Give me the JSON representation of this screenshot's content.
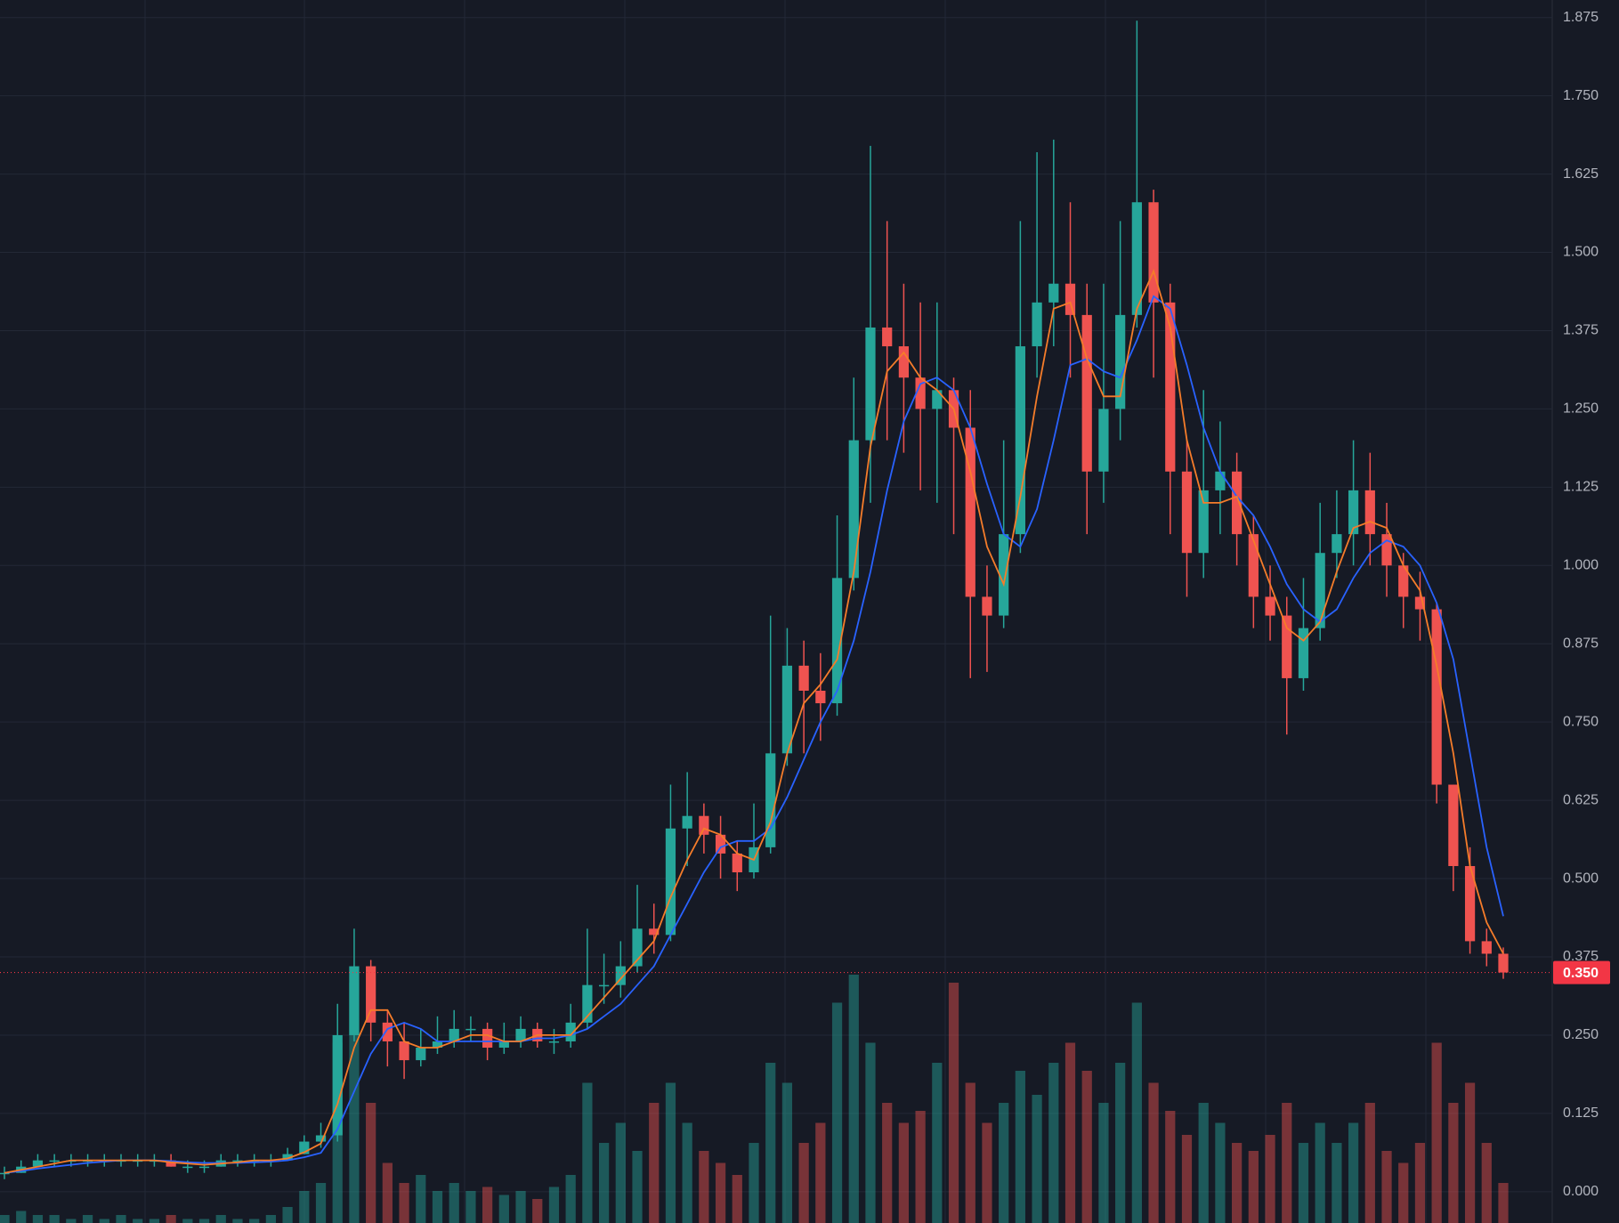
{
  "chart_data": {
    "type": "candlestick",
    "ylim": [
      -0.05,
      1.903
    ],
    "yticks": [
      {
        "value": 0,
        "label": "0.000"
      },
      {
        "value": 0.125,
        "label": "0.125"
      },
      {
        "value": 0.25,
        "label": "0.250"
      },
      {
        "value": 0.375,
        "label": "0.375"
      },
      {
        "value": 0.5,
        "label": "0.500"
      },
      {
        "value": 0.625,
        "label": "0.625"
      },
      {
        "value": 0.75,
        "label": "0.750"
      },
      {
        "value": 0.875,
        "label": "0.875"
      },
      {
        "value": 1,
        "label": "1.000"
      },
      {
        "value": 1.125,
        "label": "1.125"
      },
      {
        "value": 1.25,
        "label": "1.250"
      },
      {
        "value": 1.375,
        "label": "1.375"
      },
      {
        "value": 1.5,
        "label": "1.500"
      },
      {
        "value": 1.625,
        "label": "1.625"
      },
      {
        "value": 1.75,
        "label": "1.750"
      },
      {
        "value": 1.875,
        "label": "1.875"
      }
    ],
    "grid": true,
    "up_color": "#26a69a",
    "down_color": "#ef5350",
    "open": [
      0.03,
      0.03,
      0.04,
      0.05,
      0.05,
      0.05,
      0.05,
      0.05,
      0.05,
      0.05,
      0.05,
      0.04,
      0.04,
      0.04,
      0.05,
      0.05,
      0.05,
      0.05,
      0.06,
      0.08,
      0.09,
      0.25,
      0.36,
      0.27,
      0.24,
      0.21,
      0.23,
      0.24,
      0.26,
      0.26,
      0.23,
      0.24,
      0.26,
      0.24,
      0.24,
      0.27,
      0.33,
      0.33,
      0.36,
      0.42,
      0.41,
      0.58,
      0.6,
      0.57,
      0.54,
      0.51,
      0.55,
      0.7,
      0.84,
      0.8,
      0.78,
      0.98,
      1.2,
      1.38,
      1.35,
      1.3,
      1.25,
      1.28,
      1.22,
      0.95,
      0.92,
      1.05,
      1.35,
      1.42,
      1.45,
      1.4,
      1.15,
      1.25,
      1.4,
      1.58,
      1.42,
      1.15,
      1.02,
      1.12,
      1.15,
      1.05,
      0.95,
      0.92,
      0.82,
      0.9,
      1.02,
      1.05,
      1.12,
      1.05,
      1.0,
      0.95,
      0.93,
      0.65,
      0.52,
      0.4,
      0.38
    ],
    "high": [
      0.04,
      0.05,
      0.06,
      0.06,
      0.06,
      0.06,
      0.06,
      0.06,
      0.06,
      0.06,
      0.06,
      0.05,
      0.05,
      0.06,
      0.06,
      0.06,
      0.06,
      0.07,
      0.09,
      0.11,
      0.3,
      0.42,
      0.37,
      0.29,
      0.27,
      0.26,
      0.28,
      0.29,
      0.28,
      0.27,
      0.27,
      0.28,
      0.27,
      0.26,
      0.3,
      0.42,
      0.38,
      0.4,
      0.49,
      0.46,
      0.65,
      0.67,
      0.62,
      0.6,
      0.56,
      0.62,
      0.92,
      0.9,
      0.88,
      0.86,
      1.08,
      1.3,
      1.67,
      1.55,
      1.45,
      1.42,
      1.42,
      1.3,
      1.28,
      1.0,
      1.2,
      1.55,
      1.66,
      1.68,
      1.58,
      1.45,
      1.45,
      1.55,
      1.87,
      1.6,
      1.45,
      1.2,
      1.28,
      1.23,
      1.18,
      1.08,
      1.0,
      0.95,
      0.98,
      1.1,
      1.12,
      1.2,
      1.18,
      1.1,
      1.02,
      0.99,
      0.94,
      0.65,
      0.55,
      0.42,
      0.39
    ],
    "low": [
      0.02,
      0.03,
      0.04,
      0.04,
      0.04,
      0.04,
      0.04,
      0.04,
      0.04,
      0.04,
      0.04,
      0.03,
      0.03,
      0.04,
      0.04,
      0.04,
      0.04,
      0.05,
      0.06,
      0.07,
      0.08,
      0.24,
      0.24,
      0.2,
      0.18,
      0.2,
      0.22,
      0.23,
      0.24,
      0.21,
      0.22,
      0.23,
      0.23,
      0.22,
      0.23,
      0.26,
      0.3,
      0.31,
      0.35,
      0.38,
      0.4,
      0.52,
      0.54,
      0.5,
      0.48,
      0.5,
      0.54,
      0.68,
      0.7,
      0.72,
      0.76,
      0.96,
      1.1,
      1.2,
      1.18,
      1.12,
      1.1,
      1.05,
      0.82,
      0.83,
      0.9,
      1.02,
      1.3,
      1.35,
      1.3,
      1.05,
      1.1,
      1.2,
      1.38,
      1.3,
      1.05,
      0.95,
      0.98,
      1.05,
      1.0,
      0.9,
      0.88,
      0.73,
      0.8,
      0.88,
      0.98,
      1.0,
      1.0,
      0.95,
      0.9,
      0.88,
      0.62,
      0.48,
      0.38,
      0.36,
      0.34
    ],
    "close": [
      0.03,
      0.04,
      0.05,
      0.05,
      0.05,
      0.05,
      0.05,
      0.05,
      0.05,
      0.05,
      0.04,
      0.04,
      0.04,
      0.05,
      0.05,
      0.05,
      0.05,
      0.06,
      0.08,
      0.09,
      0.25,
      0.36,
      0.27,
      0.24,
      0.21,
      0.23,
      0.24,
      0.26,
      0.26,
      0.23,
      0.24,
      0.26,
      0.24,
      0.24,
      0.27,
      0.33,
      0.33,
      0.36,
      0.42,
      0.41,
      0.58,
      0.6,
      0.57,
      0.54,
      0.51,
      0.55,
      0.7,
      0.84,
      0.8,
      0.78,
      0.98,
      1.2,
      1.38,
      1.35,
      1.3,
      1.25,
      1.28,
      1.22,
      0.95,
      0.92,
      1.05,
      1.35,
      1.42,
      1.45,
      1.4,
      1.15,
      1.25,
      1.4,
      1.58,
      1.42,
      1.15,
      1.02,
      1.12,
      1.15,
      1.05,
      0.95,
      0.92,
      0.82,
      0.9,
      1.02,
      1.05,
      1.12,
      1.05,
      1.0,
      0.95,
      0.93,
      0.65,
      0.52,
      0.4,
      0.38,
      0.35
    ],
    "ma_fast": {
      "color": "#f57c2a",
      "values": [
        0.03,
        0.035,
        0.04,
        0.045,
        0.05,
        0.05,
        0.05,
        0.05,
        0.05,
        0.05,
        0.047,
        0.045,
        0.043,
        0.045,
        0.047,
        0.05,
        0.05,
        0.053,
        0.063,
        0.077,
        0.14,
        0.23,
        0.29,
        0.29,
        0.24,
        0.23,
        0.23,
        0.24,
        0.25,
        0.25,
        0.24,
        0.24,
        0.25,
        0.25,
        0.25,
        0.28,
        0.31,
        0.34,
        0.37,
        0.4,
        0.47,
        0.53,
        0.58,
        0.57,
        0.54,
        0.53,
        0.59,
        0.7,
        0.78,
        0.81,
        0.85,
        0.99,
        1.19,
        1.31,
        1.34,
        1.3,
        1.28,
        1.25,
        1.15,
        1.03,
        0.97,
        1.11,
        1.27,
        1.41,
        1.42,
        1.33,
        1.27,
        1.27,
        1.41,
        1.47,
        1.38,
        1.2,
        1.1,
        1.1,
        1.11,
        1.04,
        0.97,
        0.9,
        0.88,
        0.91,
        0.99,
        1.06,
        1.07,
        1.06,
        1.0,
        0.96,
        0.84,
        0.7,
        0.52,
        0.43,
        0.38
      ]
    },
    "ma_slow": {
      "color": "#2962ff",
      "values": [
        0.03,
        0.033,
        0.037,
        0.04,
        0.043,
        0.046,
        0.048,
        0.05,
        0.05,
        0.05,
        0.049,
        0.047,
        0.046,
        0.046,
        0.046,
        0.047,
        0.048,
        0.05,
        0.055,
        0.062,
        0.1,
        0.16,
        0.22,
        0.26,
        0.27,
        0.26,
        0.24,
        0.24,
        0.24,
        0.24,
        0.24,
        0.24,
        0.245,
        0.245,
        0.25,
        0.26,
        0.28,
        0.3,
        0.33,
        0.36,
        0.41,
        0.46,
        0.51,
        0.55,
        0.56,
        0.56,
        0.58,
        0.63,
        0.69,
        0.75,
        0.8,
        0.88,
        0.99,
        1.12,
        1.23,
        1.29,
        1.3,
        1.28,
        1.22,
        1.13,
        1.05,
        1.03,
        1.09,
        1.2,
        1.32,
        1.33,
        1.31,
        1.3,
        1.36,
        1.43,
        1.41,
        1.32,
        1.22,
        1.15,
        1.11,
        1.08,
        1.03,
        0.97,
        0.93,
        0.91,
        0.93,
        0.98,
        1.02,
        1.04,
        1.03,
        1.0,
        0.94,
        0.85,
        0.7,
        0.55,
        0.44
      ]
    },
    "volume": [
      2,
      3,
      2,
      2,
      1,
      2,
      1,
      2,
      1,
      1,
      2,
      1,
      1,
      2,
      1,
      1,
      2,
      4,
      8,
      10,
      45,
      60,
      30,
      15,
      10,
      12,
      8,
      10,
      8,
      9,
      7,
      8,
      6,
      9,
      12,
      35,
      20,
      25,
      18,
      30,
      35,
      25,
      18,
      15,
      12,
      20,
      40,
      35,
      20,
      25,
      55,
      62,
      45,
      30,
      25,
      28,
      40,
      60,
      35,
      25,
      30,
      38,
      32,
      40,
      45,
      38,
      30,
      40,
      55,
      35,
      28,
      22,
      30,
      25,
      20,
      18,
      22,
      30,
      20,
      25,
      20,
      25,
      30,
      18,
      15,
      20,
      45,
      30,
      35,
      20,
      10
    ],
    "last_price": {
      "value": 0.35,
      "label": "0.350",
      "color": "#f23645"
    }
  }
}
